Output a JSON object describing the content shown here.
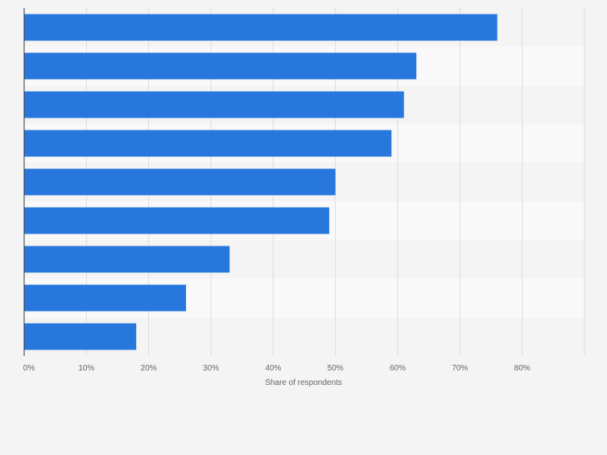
{
  "chart_data": {
    "type": "bar",
    "orientation": "horizontal",
    "categories": [
      "",
      "",
      "",
      "",
      "",
      "",
      "",
      "",
      ""
    ],
    "values": [
      76,
      63,
      61,
      59,
      50,
      49,
      33,
      26,
      18
    ],
    "xlabel": "Share of respondents",
    "ylabel": "",
    "xlim": [
      0,
      90
    ],
    "xticks": [
      0,
      10,
      20,
      30,
      40,
      50,
      60,
      70,
      80
    ],
    "xtick_labels": [
      "0%",
      "10%",
      "20%",
      "30%",
      "40%",
      "50%",
      "60%",
      "70%",
      "80%"
    ],
    "grid": true,
    "legend": "none"
  },
  "colors": {
    "bar": "#2777dd",
    "background": "#f4f4f4",
    "band_light": "#f9f9f9",
    "band_dark": "#f4f4f4",
    "gridline": "#dddddd",
    "axis": "#333333",
    "tick_text": "#666666"
  }
}
